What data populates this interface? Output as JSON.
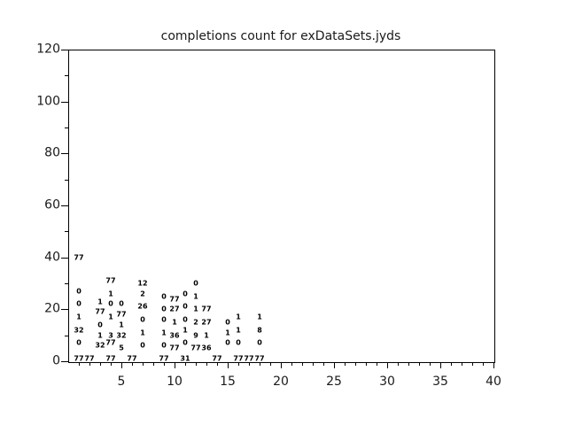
{
  "title": "completions count for exDataSets.jyds",
  "colors": {
    "background": "#ffffff",
    "axis": "#000000",
    "text": "#1a1a1a",
    "point_text": "#000000"
  },
  "chart_data": {
    "type": "scatter",
    "title": "completions count for exDataSets.jyds",
    "xlabel": "",
    "ylabel": "",
    "xlim": [
      0,
      40
    ],
    "ylim": [
      0,
      120
    ],
    "grid": false,
    "legend": null,
    "x_major_ticks": [
      5,
      10,
      15,
      20,
      25,
      30,
      35,
      40
    ],
    "x_major_tick_labels": [
      "5",
      "10",
      "15",
      "20",
      "25",
      "30",
      "35",
      "40"
    ],
    "x_minor_tick_step": 1,
    "y_major_ticks": [
      0,
      20,
      40,
      60,
      80,
      100,
      120
    ],
    "y_major_tick_labels": [
      "0",
      "20",
      "40",
      "60",
      "80",
      "100",
      "120"
    ],
    "y_minor_tick_step": 10,
    "point_style": "numeric text label drawn at each data point",
    "points": [
      {
        "x": 1,
        "y": 40,
        "label": "77"
      },
      {
        "x": 1,
        "y": 27,
        "label": "0"
      },
      {
        "x": 1,
        "y": 22,
        "label": "0"
      },
      {
        "x": 1,
        "y": 17,
        "label": "1"
      },
      {
        "x": 1,
        "y": 12,
        "label": "32"
      },
      {
        "x": 1,
        "y": 7,
        "label": "0"
      },
      {
        "x": 1,
        "y": 1,
        "label": "77"
      },
      {
        "x": 2,
        "y": 1,
        "label": "77"
      },
      {
        "x": 3,
        "y": 23,
        "label": "1"
      },
      {
        "x": 3,
        "y": 19,
        "label": "77"
      },
      {
        "x": 3,
        "y": 14,
        "label": "0"
      },
      {
        "x": 3,
        "y": 10,
        "label": "1"
      },
      {
        "x": 3,
        "y": 6,
        "label": "32"
      },
      {
        "x": 4,
        "y": 31,
        "label": "77"
      },
      {
        "x": 4,
        "y": 26,
        "label": "1"
      },
      {
        "x": 4,
        "y": 22,
        "label": "0"
      },
      {
        "x": 4,
        "y": 17,
        "label": "1"
      },
      {
        "x": 4,
        "y": 10,
        "label": "3"
      },
      {
        "x": 4,
        "y": 7,
        "label": "77"
      },
      {
        "x": 4,
        "y": 1,
        "label": "77"
      },
      {
        "x": 5,
        "y": 22,
        "label": "0"
      },
      {
        "x": 5,
        "y": 18,
        "label": "77"
      },
      {
        "x": 5,
        "y": 14,
        "label": "1"
      },
      {
        "x": 5,
        "y": 10,
        "label": "32"
      },
      {
        "x": 5,
        "y": 5,
        "label": "5"
      },
      {
        "x": 6,
        "y": 1,
        "label": "77"
      },
      {
        "x": 7,
        "y": 30,
        "label": "12"
      },
      {
        "x": 7,
        "y": 26,
        "label": "2"
      },
      {
        "x": 7,
        "y": 21,
        "label": "26"
      },
      {
        "x": 7,
        "y": 16,
        "label": "0"
      },
      {
        "x": 7,
        "y": 11,
        "label": "1"
      },
      {
        "x": 7,
        "y": 6,
        "label": "0"
      },
      {
        "x": 9,
        "y": 25,
        "label": "0"
      },
      {
        "x": 9,
        "y": 20,
        "label": "0"
      },
      {
        "x": 9,
        "y": 16,
        "label": "0"
      },
      {
        "x": 9,
        "y": 11,
        "label": "1"
      },
      {
        "x": 9,
        "y": 6,
        "label": "0"
      },
      {
        "x": 9,
        "y": 1,
        "label": "77"
      },
      {
        "x": 10,
        "y": 24,
        "label": "77"
      },
      {
        "x": 10,
        "y": 20,
        "label": "27"
      },
      {
        "x": 10,
        "y": 15,
        "label": "1"
      },
      {
        "x": 10,
        "y": 10,
        "label": "36"
      },
      {
        "x": 10,
        "y": 5,
        "label": "77"
      },
      {
        "x": 11,
        "y": 26,
        "label": "0"
      },
      {
        "x": 11,
        "y": 21,
        "label": "0"
      },
      {
        "x": 11,
        "y": 16,
        "label": "0"
      },
      {
        "x": 11,
        "y": 12,
        "label": "1"
      },
      {
        "x": 11,
        "y": 7,
        "label": "0"
      },
      {
        "x": 11,
        "y": 1,
        "label": "31"
      },
      {
        "x": 12,
        "y": 30,
        "label": "0"
      },
      {
        "x": 12,
        "y": 25,
        "label": "1"
      },
      {
        "x": 12,
        "y": 20,
        "label": "1"
      },
      {
        "x": 12,
        "y": 15,
        "label": "2"
      },
      {
        "x": 12,
        "y": 10,
        "label": "9"
      },
      {
        "x": 12,
        "y": 5,
        "label": "77"
      },
      {
        "x": 13,
        "y": 20,
        "label": "77"
      },
      {
        "x": 13,
        "y": 15,
        "label": "27"
      },
      {
        "x": 13,
        "y": 10,
        "label": "1"
      },
      {
        "x": 13,
        "y": 5,
        "label": "36"
      },
      {
        "x": 14,
        "y": 1,
        "label": "77"
      },
      {
        "x": 15,
        "y": 15,
        "label": "0"
      },
      {
        "x": 15,
        "y": 11,
        "label": "1"
      },
      {
        "x": 15,
        "y": 7,
        "label": "0"
      },
      {
        "x": 16,
        "y": 17,
        "label": "1"
      },
      {
        "x": 16,
        "y": 12,
        "label": "1"
      },
      {
        "x": 16,
        "y": 7,
        "label": "0"
      },
      {
        "x": 16,
        "y": 1,
        "label": "77"
      },
      {
        "x": 17,
        "y": 1,
        "label": "77"
      },
      {
        "x": 18,
        "y": 17,
        "label": "1"
      },
      {
        "x": 18,
        "y": 12,
        "label": "8"
      },
      {
        "x": 18,
        "y": 7,
        "label": "0"
      },
      {
        "x": 18,
        "y": 1,
        "label": "77"
      }
    ]
  }
}
